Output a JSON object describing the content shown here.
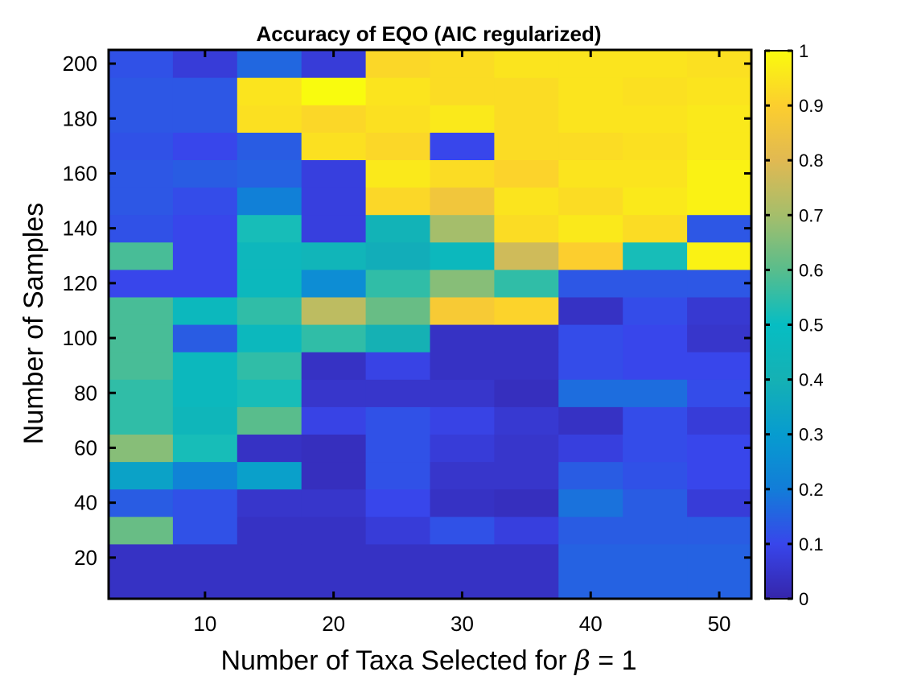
{
  "chart_data": {
    "type": "heatmap",
    "title": "Accuracy of EQO (AIC regularized)",
    "xlabel": "Number of Taxa Selected for β = 1",
    "xlabel_prefix": "Number of Taxa Selected for ",
    "xlabel_symbol": "β",
    "xlabel_suffix": " = 1",
    "ylabel": "Number of Samples",
    "x": [
      5,
      10,
      15,
      20,
      25,
      30,
      35,
      40,
      45,
      50
    ],
    "y": [
      10,
      20,
      30,
      40,
      50,
      60,
      70,
      80,
      90,
      100,
      110,
      120,
      130,
      140,
      150,
      160,
      170,
      180,
      190,
      200
    ],
    "xlim": [
      2.5,
      52.5
    ],
    "ylim": [
      5,
      205
    ],
    "xticks": [
      10,
      20,
      30,
      40,
      50
    ],
    "yticks": [
      20,
      40,
      60,
      80,
      100,
      120,
      140,
      160,
      180,
      200
    ],
    "clim": [
      0,
      1
    ],
    "colorbar_ticks": [
      0,
      0.1,
      0.2,
      0.3,
      0.4,
      0.5,
      0.6,
      0.7,
      0.8,
      0.9,
      1
    ],
    "colormap": "parula",
    "grid": false,
    "values": [
      [
        0.04,
        0.04,
        0.04,
        0.04,
        0.04,
        0.04,
        0.04,
        0.15,
        0.15,
        0.15
      ],
      [
        0.04,
        0.04,
        0.04,
        0.04,
        0.04,
        0.04,
        0.04,
        0.15,
        0.15,
        0.15
      ],
      [
        0.62,
        0.12,
        0.04,
        0.04,
        0.07,
        0.12,
        0.08,
        0.14,
        0.14,
        0.14
      ],
      [
        0.14,
        0.12,
        0.05,
        0.05,
        0.1,
        0.04,
        0.03,
        0.18,
        0.14,
        0.07
      ],
      [
        0.33,
        0.22,
        0.32,
        0.03,
        0.12,
        0.05,
        0.05,
        0.14,
        0.12,
        0.1
      ],
      [
        0.66,
        0.52,
        0.04,
        0.03,
        0.12,
        0.07,
        0.05,
        0.08,
        0.11,
        0.1
      ],
      [
        0.55,
        0.44,
        0.6,
        0.09,
        0.12,
        0.09,
        0.06,
        0.04,
        0.11,
        0.07
      ],
      [
        0.55,
        0.46,
        0.52,
        0.05,
        0.05,
        0.05,
        0.03,
        0.17,
        0.17,
        0.11
      ],
      [
        0.58,
        0.46,
        0.55,
        0.04,
        0.09,
        0.04,
        0.04,
        0.11,
        0.1,
        0.1
      ],
      [
        0.58,
        0.14,
        0.46,
        0.55,
        0.4,
        0.04,
        0.04,
        0.11,
        0.1,
        0.05
      ],
      [
        0.58,
        0.46,
        0.55,
        0.74,
        0.62,
        0.88,
        0.91,
        0.04,
        0.11,
        0.06
      ],
      [
        0.1,
        0.1,
        0.46,
        0.25,
        0.55,
        0.66,
        0.55,
        0.13,
        0.13,
        0.13
      ],
      [
        0.58,
        0.1,
        0.45,
        0.43,
        0.38,
        0.46,
        0.77,
        0.9,
        0.52,
        0.98
      ],
      [
        0.12,
        0.1,
        0.52,
        0.08,
        0.42,
        0.7,
        0.93,
        0.96,
        0.93,
        0.13
      ],
      [
        0.13,
        0.11,
        0.21,
        0.08,
        0.92,
        0.86,
        0.95,
        0.93,
        0.96,
        0.98
      ],
      [
        0.13,
        0.14,
        0.15,
        0.08,
        0.96,
        0.93,
        0.91,
        0.95,
        0.95,
        0.98
      ],
      [
        0.12,
        0.1,
        0.14,
        0.94,
        0.92,
        0.1,
        0.93,
        0.93,
        0.94,
        0.96
      ],
      [
        0.13,
        0.13,
        0.94,
        0.92,
        0.94,
        0.96,
        0.93,
        0.95,
        0.95,
        0.96
      ],
      [
        0.13,
        0.13,
        0.95,
        1.0,
        0.95,
        0.93,
        0.93,
        0.95,
        0.94,
        0.95
      ],
      [
        0.12,
        0.07,
        0.16,
        0.07,
        0.92,
        0.93,
        0.95,
        0.95,
        0.95,
        0.94
      ]
    ]
  }
}
